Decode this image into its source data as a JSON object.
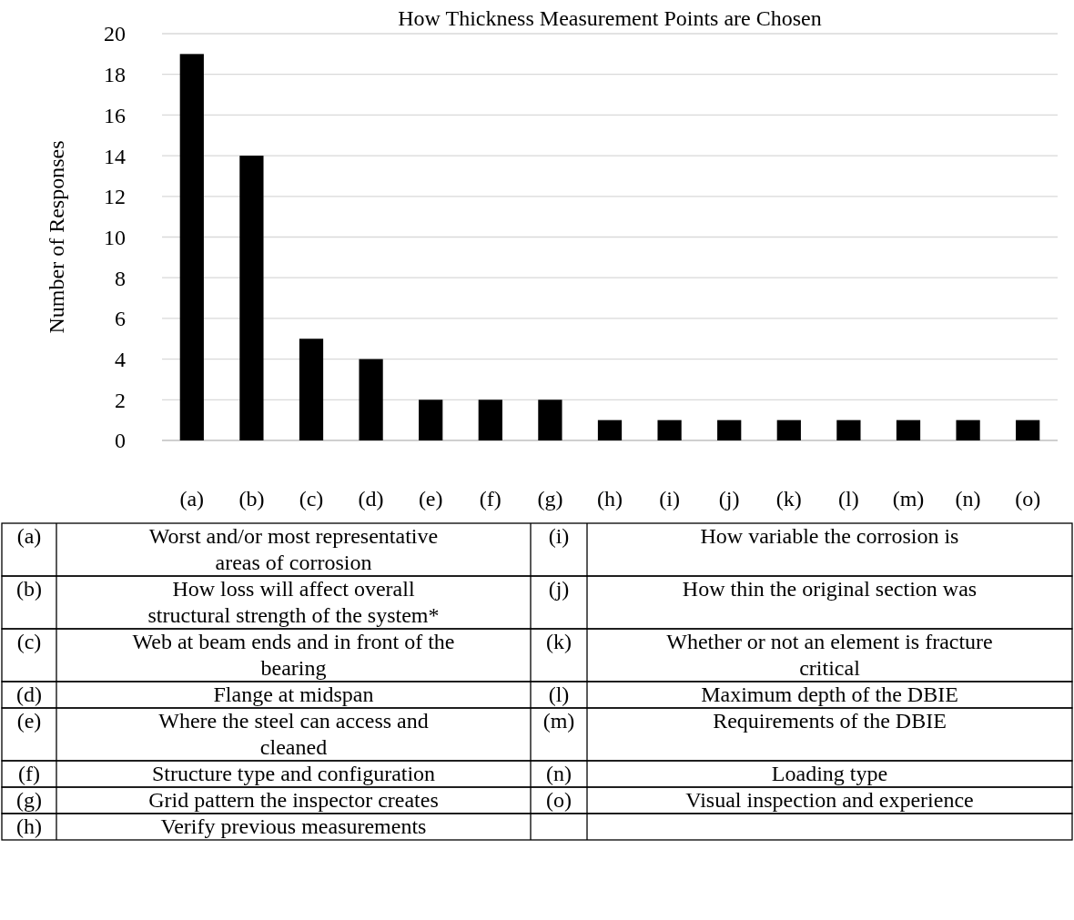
{
  "chart_data": {
    "type": "bar",
    "title": "How Thickness Measurement Points are Chosen",
    "ylabel": "Number of Responses",
    "categories": [
      "(a)",
      "(b)",
      "(c)",
      "(d)",
      "(e)",
      "(f)",
      "(g)",
      "(h)",
      "(i)",
      "(j)",
      "(k)",
      "(l)",
      "(m)",
      "(n)",
      "(o)"
    ],
    "values": [
      19,
      14,
      5,
      4,
      2,
      2,
      2,
      1,
      1,
      1,
      1,
      1,
      1,
      1,
      1
    ],
    "color": "#000000",
    "ylim": [
      0,
      20
    ],
    "yticks": [
      0,
      2,
      4,
      6,
      8,
      10,
      12,
      14,
      16,
      18,
      20
    ],
    "grid": "y",
    "annotations": [
      "Worst and/or most representative areas of corrosion",
      "How loss will affect overall structural strength of the system*",
      "Web at beam ends and in front of the bearing",
      "Flange at midspan",
      "Where the steel can access and cleaned",
      "Structure type and configuration",
      "Grid pattern the inspector creates",
      "Verify previous measurements",
      "How variable the corrosion is",
      "How thin the original section was",
      "Whether or not an element is fracture critical",
      "Maximum depth of the DBIE",
      "Requirements of the DBIE",
      "Loading type",
      "Visual inspection and experience"
    ]
  }
}
